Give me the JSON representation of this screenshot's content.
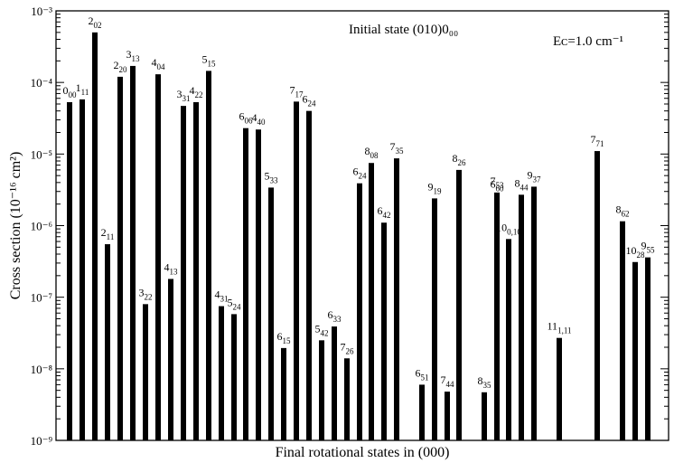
{
  "chart_data": {
    "type": "bar",
    "scale_y": "log",
    "ylim": [
      1e-09,
      0.001
    ],
    "ylabel": "Cross section (10⁻¹⁶ cm²)",
    "xlabel": "Final rotational states in (000)",
    "annotations": [
      "Initial state (010)0₀₀",
      "Eᴄ=1.0 cm⁻¹"
    ],
    "y_ticks": [
      "10⁻⁹",
      "10⁻⁸",
      "10⁻⁷",
      "10⁻⁶",
      "10⁻⁵",
      "10⁻⁴",
      "10⁻³"
    ],
    "grid": false,
    "bars": [
      {
        "j": "0",
        "ka": "00",
        "value": 5.3e-05
      },
      {
        "j": "1",
        "ka": "11",
        "value": 5.8e-05
      },
      {
        "j": "2",
        "ka": "02",
        "value": 0.0005
      },
      {
        "j": "2",
        "ka": "11",
        "value": 5.5e-07
      },
      {
        "j": "2",
        "ka": "20",
        "value": 0.00012
      },
      {
        "j": "3",
        "ka": "13",
        "value": 0.00017
      },
      {
        "j": "3",
        "ka": "22",
        "value": 8e-08
      },
      {
        "j": "4",
        "ka": "04",
        "value": 0.00013
      },
      {
        "j": "4",
        "ka": "13",
        "value": 1.8e-07
      },
      {
        "j": "3",
        "ka": "31",
        "value": 4.7e-05
      },
      {
        "j": "4",
        "ka": "22",
        "value": 5.3e-05
      },
      {
        "j": "5",
        "ka": "15",
        "value": 0.000145
      },
      {
        "j": "4",
        "ka": "31",
        "value": 7.5e-08
      },
      {
        "j": "5",
        "ka": "24",
        "value": 5.8e-08
      },
      {
        "j": "6",
        "ka": "06",
        "value": 2.3e-05
      },
      {
        "j": "4",
        "ka": "40",
        "value": 2.2e-05
      },
      {
        "j": "5",
        "ka": "33",
        "value": 3.4e-06
      },
      {
        "j": "6",
        "ka": "15",
        "value": 1.95e-08
      },
      {
        "j": "7",
        "ka": "17",
        "value": 5.4e-05
      },
      {
        "j": "6",
        "ka": "24",
        "value": 4e-05
      },
      {
        "j": "5",
        "ka": "42",
        "value": 2.5e-08
      },
      {
        "j": "6",
        "ka": "33",
        "value": 3.9e-08
      },
      {
        "j": "7",
        "ka": "26",
        "value": 1.4e-08
      },
      {
        "j": "6",
        "ka": "24",
        "value": 3.9e-06
      },
      {
        "j": "8",
        "ka": "08",
        "value": 7.5e-06
      },
      {
        "j": "6",
        "ka": "42",
        "value": 1.1e-06
      },
      {
        "j": "7",
        "ka": "35",
        "value": 8.7e-06
      },
      {
        "j": "6",
        "ka": "51",
        "value": 6e-09
      },
      {
        "j": "9",
        "ka": "19",
        "value": 2.4e-06
      },
      {
        "j": "7",
        "ka": "44",
        "value": 4.8e-09
      },
      {
        "j": "8",
        "ka": "26",
        "value": 6e-06
      },
      {
        "j": "8",
        "ka": "35",
        "value": 4.7e-09
      },
      {
        "j": "6",
        "ka": "60",
        "value": 2.6e-06
      },
      {
        "j": "7",
        "ka": "53",
        "value": 2.9e-06
      },
      {
        "j": "10",
        "ka": "0,10",
        "value": 6.5e-07
      },
      {
        "j": "8",
        "ka": "44",
        "value": 2.7e-06
      },
      {
        "j": "9",
        "ka": "37",
        "value": 3.5e-06
      },
      {
        "j": "11",
        "ka": "1,11",
        "value": 2.7e-08
      },
      {
        "j": "7",
        "ka": "71",
        "value": 1.1e-05
      },
      {
        "j": "8",
        "ka": "62",
        "value": 1.15e-06
      },
      {
        "j": "10",
        "ka": "28",
        "value": 3.1e-07
      },
      {
        "j": "9",
        "ka": "55",
        "value": 3.6e-07
      }
    ]
  }
}
